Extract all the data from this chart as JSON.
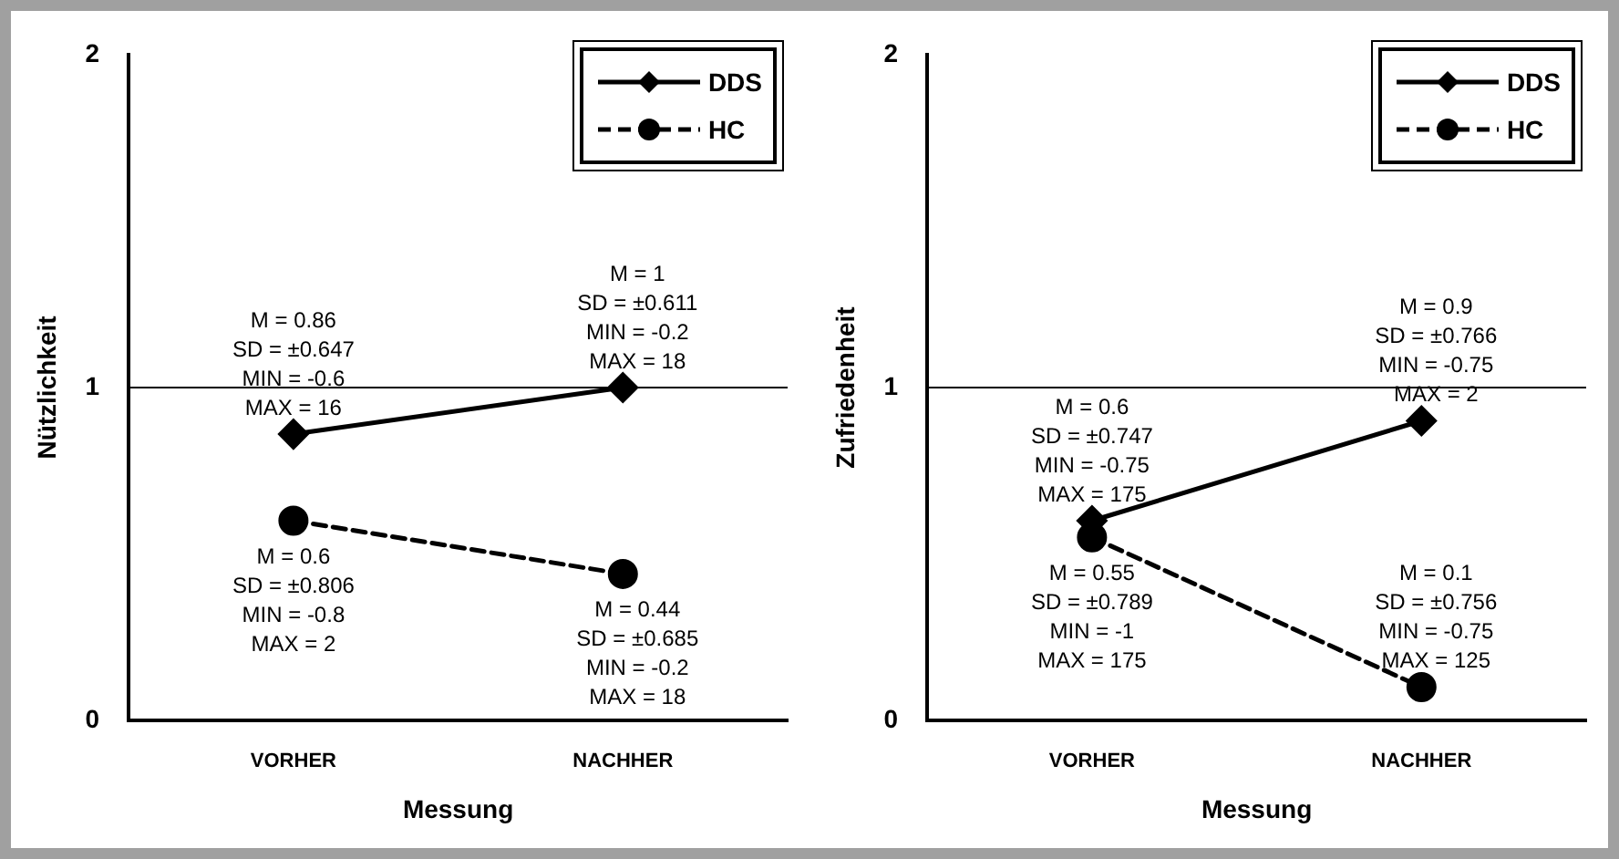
{
  "chart_data": [
    {
      "type": "line",
      "xlabel": "Messung",
      "ylabel": "Nützlichkeit",
      "categories": [
        "VORHER",
        "NACHHER"
      ],
      "ylim": [
        0,
        2
      ],
      "yticks": [
        0,
        1,
        2
      ],
      "grid": false,
      "legend": "top right",
      "ref_lines": [
        {
          "axis": "y",
          "value": 1
        }
      ],
      "series": [
        {
          "name": "DDS",
          "color": "#000000",
          "marker": "diamond",
          "line_style": "solid",
          "values": [
            0.86,
            1
          ]
        },
        {
          "name": "HC",
          "color": "#000000",
          "marker": "circle",
          "line_style": "dashed",
          "values": [
            0.6,
            0.44
          ]
        }
      ],
      "annotations": [
        {
          "text": "M = 0.86\nSD = ±0.647\nMIN = -0.6\nMAX = 16",
          "x": "VORHER",
          "y": 0.86
        },
        {
          "text": "M = 1\nSD = ±0.611\nMIN = -0.2\nMAX = 18",
          "x": "NACHHER",
          "y": 1
        },
        {
          "text": "M = 0.6\nSD = ±0.806\nMIN = -0.8\nMAX = 2",
          "x": "VORHER",
          "y": 0.6
        },
        {
          "text": "M = 0.44\nSD = ±0.685\nMIN = -0.2\nMAX = 18",
          "x": "NACHHER",
          "y": 0.44
        }
      ]
    },
    {
      "type": "line",
      "xlabel": "Messung",
      "ylabel": "Zufriedenheit",
      "categories": [
        "VORHER",
        "NACHHER"
      ],
      "ylim": [
        0,
        2
      ],
      "yticks": [
        0,
        1,
        2
      ],
      "grid": false,
      "legend": "top right",
      "ref_lines": [
        {
          "axis": "y",
          "value": 1
        }
      ],
      "series": [
        {
          "name": "DDS",
          "color": "#000000",
          "marker": "diamond",
          "line_style": "solid",
          "values": [
            0.6,
            0.9
          ]
        },
        {
          "name": "HC",
          "color": "#000000",
          "marker": "circle",
          "line_style": "dashed",
          "values": [
            0.55,
            0.1
          ]
        }
      ],
      "annotations": [
        {
          "text": "M = 0.6\nSD = ±0.747\nMIN = -0.75\nMAX = 175",
          "x": "VORHER",
          "y": 0.6
        },
        {
          "text": "M = 0.9\nSD = ±0.766\nMIN = -0.75\nMAX = 2",
          "x": "NACHHER",
          "y": 0.9
        },
        {
          "text": "M = 0.55\nSD = ±0.789\nMIN = -1\nMAX = 175",
          "x": "VORHER",
          "y": 0.55
        },
        {
          "text": "M = 0.1\nSD = ±0.756\nMIN = -0.75\nMAX = 125",
          "x": "NACHHER",
          "y": 0.1
        }
      ]
    }
  ]
}
